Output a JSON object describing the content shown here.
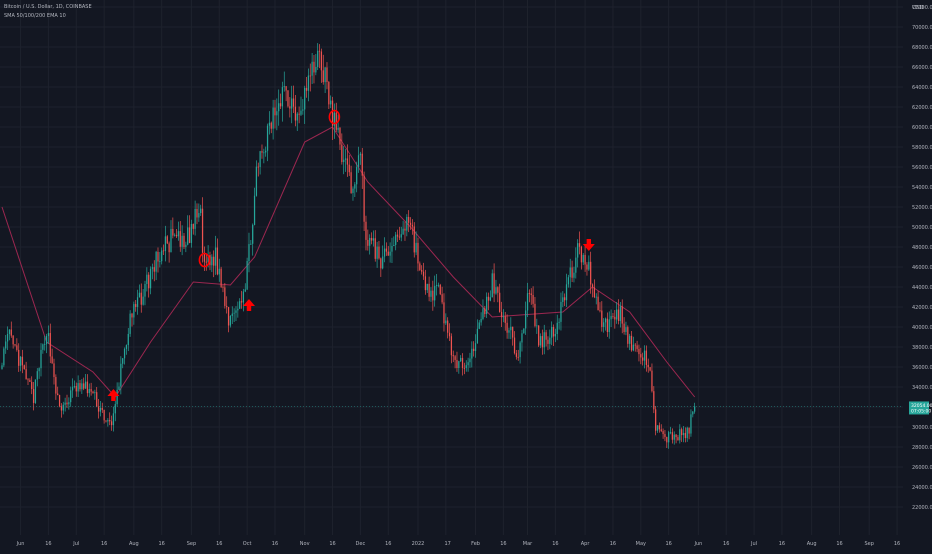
{
  "header": {
    "symbol_title": "Bitcoin / U.S. Dollar, 1D, COINBASE",
    "indicator_title": "SMA 50/100/200 EMA 10"
  },
  "price_axis": {
    "currency": "USD",
    "labels": [
      "72000.00",
      "70000.00",
      "68000.00",
      "66000.00",
      "64000.00",
      "62000.00",
      "60000.00",
      "58000.00",
      "56000.00",
      "54000.00",
      "52000.00",
      "50000.00",
      "48000.00",
      "46000.00",
      "44000.00",
      "42000.00",
      "40000.00",
      "38000.00",
      "36000.00",
      "34000.00",
      "30000.00",
      "28000.00",
      "26000.00",
      "24000.00",
      "22000.00"
    ],
    "last_price_label": "32054.00",
    "last_price_sublabel": "07:05:00"
  },
  "time_axis": {
    "labels": [
      "Jun",
      "16",
      "Jul",
      "16",
      "Aug",
      "16",
      "Sep",
      "16",
      "Oct",
      "16",
      "Nov",
      "16",
      "Dec",
      "16",
      "2022",
      "17",
      "Feb",
      "16",
      "Mar",
      "16",
      "Apr",
      "16",
      "May",
      "16",
      "Jun",
      "16",
      "Jul",
      "16",
      "Aug",
      "16",
      "Sep",
      "16"
    ]
  },
  "colors": {
    "background": "#131722",
    "grid": "#1e222d",
    "up_candle": "#26a69a",
    "down_candle": "#ef5350",
    "ma_line": "#9c2750",
    "signal": "#ff0000",
    "axis_text": "#b2b5be",
    "last_price_bg": "#26a69a"
  },
  "chart_data": {
    "type": "candlestick",
    "x_unit": "daily candles",
    "y_unit": "USD",
    "ylim": [
      21000,
      73500
    ],
    "grid": true,
    "price_keypoints": [
      {
        "date": "2021-05-22",
        "price": 37000
      },
      {
        "date": "2021-05-26",
        "price": 39000
      },
      {
        "date": "2021-06-08",
        "price": 33000
      },
      {
        "date": "2021-06-15",
        "price": 40000
      },
      {
        "date": "2021-06-22",
        "price": 31500
      },
      {
        "date": "2021-07-01",
        "price": 34000
      },
      {
        "date": "2021-07-08",
        "price": 33800
      },
      {
        "date": "2021-07-20",
        "price": 29800
      },
      {
        "date": "2021-07-26",
        "price": 37000
      },
      {
        "date": "2021-07-30",
        "price": 40500
      },
      {
        "date": "2021-08-07",
        "price": 44000
      },
      {
        "date": "2021-08-14",
        "price": 47000
      },
      {
        "date": "2021-08-22",
        "price": 49000
      },
      {
        "date": "2021-08-28",
        "price": 48000
      },
      {
        "date": "2021-09-06",
        "price": 52000
      },
      {
        "date": "2021-09-07",
        "price": 46500
      },
      {
        "date": "2021-09-14",
        "price": 47000
      },
      {
        "date": "2021-09-21",
        "price": 41000
      },
      {
        "date": "2021-09-30",
        "price": 43800
      },
      {
        "date": "2021-10-06",
        "price": 55000
      },
      {
        "date": "2021-10-15",
        "price": 61000
      },
      {
        "date": "2021-10-20",
        "price": 64000
      },
      {
        "date": "2021-10-28",
        "price": 61500
      },
      {
        "date": "2021-11-09",
        "price": 67500
      },
      {
        "date": "2021-11-16",
        "price": 61000
      },
      {
        "date": "2021-11-26",
        "price": 54000
      },
      {
        "date": "2021-12-01",
        "price": 57000
      },
      {
        "date": "2021-12-04",
        "price": 49000
      },
      {
        "date": "2021-12-13",
        "price": 46500
      },
      {
        "date": "2021-12-27",
        "price": 51000
      },
      {
        "date": "2022-01-05",
        "price": 43500
      },
      {
        "date": "2022-01-12",
        "price": 43500
      },
      {
        "date": "2022-01-22",
        "price": 35500
      },
      {
        "date": "2022-02-01",
        "price": 38500
      },
      {
        "date": "2022-02-10",
        "price": 44500
      },
      {
        "date": "2022-02-24",
        "price": 37000
      },
      {
        "date": "2022-03-02",
        "price": 44000
      },
      {
        "date": "2022-03-07",
        "price": 38500
      },
      {
        "date": "2022-03-15",
        "price": 39500
      },
      {
        "date": "2022-03-28",
        "price": 47500
      },
      {
        "date": "2022-04-02",
        "price": 46500
      },
      {
        "date": "2022-04-11",
        "price": 40000
      },
      {
        "date": "2022-04-20",
        "price": 41500
      },
      {
        "date": "2022-04-26",
        "price": 38000
      },
      {
        "date": "2022-05-05",
        "price": 36500
      },
      {
        "date": "2022-05-09",
        "price": 30000
      },
      {
        "date": "2022-05-12",
        "price": 29000
      },
      {
        "date": "2022-05-26",
        "price": 29300
      },
      {
        "date": "2022-05-30",
        "price": 32054
      }
    ],
    "moving_average": [
      {
        "date": "2021-05-22",
        "price": 52000
      },
      {
        "date": "2021-06-15",
        "price": 38500
      },
      {
        "date": "2021-07-10",
        "price": 35500
      },
      {
        "date": "2021-07-22",
        "price": 33000
      },
      {
        "date": "2021-08-10",
        "price": 38500
      },
      {
        "date": "2021-09-02",
        "price": 44500
      },
      {
        "date": "2021-09-22",
        "price": 44200
      },
      {
        "date": "2021-10-05",
        "price": 47000
      },
      {
        "date": "2021-11-01",
        "price": 58500
      },
      {
        "date": "2021-11-16",
        "price": 60000
      },
      {
        "date": "2021-12-05",
        "price": 54500
      },
      {
        "date": "2021-12-28",
        "price": 50000
      },
      {
        "date": "2022-01-20",
        "price": 45000
      },
      {
        "date": "2022-02-10",
        "price": 41000
      },
      {
        "date": "2022-03-20",
        "price": 41500
      },
      {
        "date": "2022-04-05",
        "price": 44000
      },
      {
        "date": "2022-04-25",
        "price": 41500
      },
      {
        "date": "2022-05-15",
        "price": 36500
      },
      {
        "date": "2022-05-30",
        "price": 33000
      }
    ],
    "signals": [
      {
        "type": "up-arrow",
        "date": "2021-07-21",
        "price": 33200
      },
      {
        "type": "circle",
        "date": "2021-09-08",
        "price": 46700
      },
      {
        "type": "up-arrow",
        "date": "2021-10-02",
        "price": 42200
      },
      {
        "type": "circle",
        "date": "2021-11-17",
        "price": 61000
      },
      {
        "type": "down-arrow",
        "date": "2022-04-03",
        "price": 48200
      }
    ],
    "last_price": 32054
  }
}
